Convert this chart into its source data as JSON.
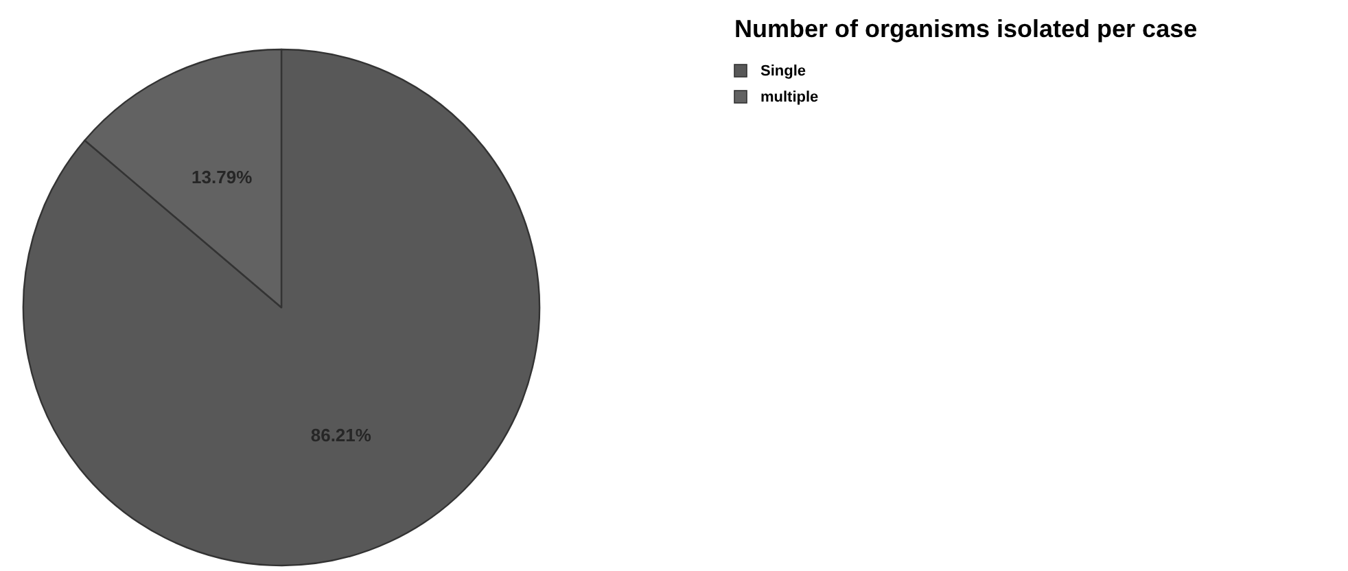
{
  "chart_data": {
    "type": "pie",
    "title": "Number of organisms isolated per case",
    "categories": [
      "Single",
      "multiple"
    ],
    "values": [
      86.21,
      13.79
    ],
    "colors": [
      "#585858",
      "#626262"
    ],
    "value_labels": [
      "86.21%",
      "13.79%"
    ],
    "legend": "top right"
  }
}
